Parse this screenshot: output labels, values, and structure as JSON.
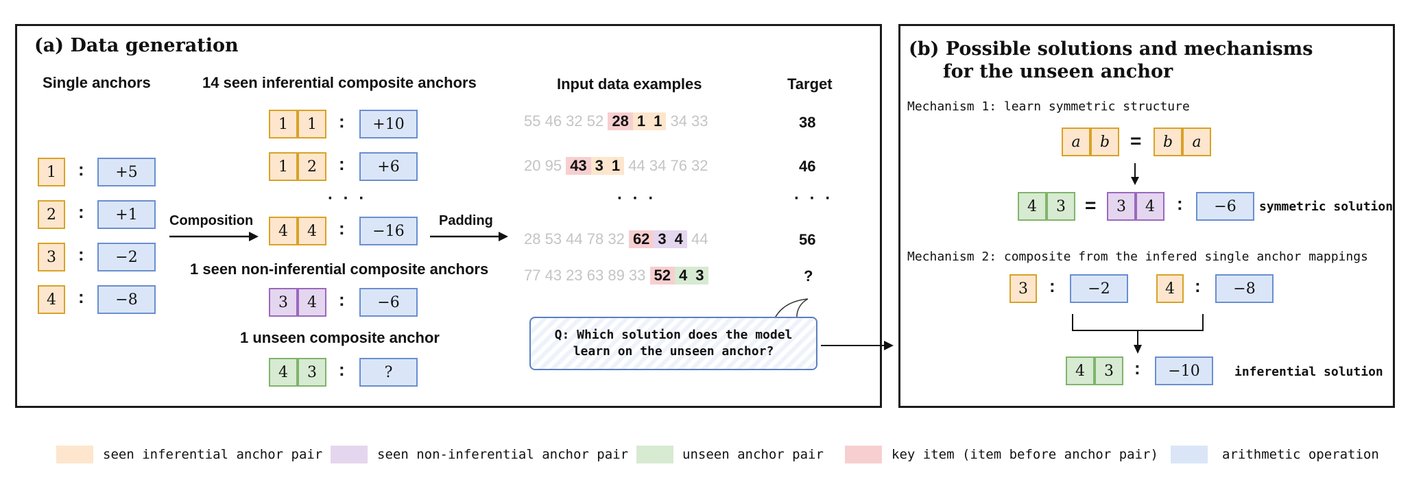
{
  "panel_a": {
    "title": "(a) Data generation",
    "headers": {
      "single": "Single anchors",
      "inferential": "14 seen inferential composite anchors",
      "input": "Input data examples",
      "target": "Target"
    },
    "single_anchors": [
      {
        "key": "1",
        "op": "+5"
      },
      {
        "key": "2",
        "op": "+1"
      },
      {
        "key": "3",
        "op": "−2"
      },
      {
        "key": "4",
        "op": "−8"
      }
    ],
    "inferential_anchors": [
      {
        "a": "1",
        "b": "1",
        "op": "+10"
      },
      {
        "a": "1",
        "b": "2",
        "op": "+6"
      },
      {
        "a": "4",
        "b": "4",
        "op": "−16"
      }
    ],
    "non_inferential_label": "1 seen non-inferential composite anchors",
    "non_inferential": {
      "a": "3",
      "b": "4",
      "op": "−6"
    },
    "unseen_label": "1 unseen composite anchor",
    "unseen": {
      "a": "4",
      "b": "3",
      "op": "?"
    },
    "composition_label": "Composition",
    "padding_label": "Padding",
    "ellipsis": "· · ·",
    "examples": [
      {
        "pre": "55 46 32 52",
        "key": "28",
        "a": "1",
        "b": "1",
        "post": "34 33",
        "target": "38"
      },
      {
        "pre": "20 95",
        "key": "43",
        "a": "3",
        "b": "1",
        "post": "44 34 76 32",
        "target": "46"
      },
      {
        "pre": "28 53 44 78 32",
        "key": "62",
        "a": "3",
        "b": "4",
        "post": "44",
        "target": "56"
      },
      {
        "pre": "77 43 23 63 89 33",
        "key": "52",
        "a": "4",
        "b": "3",
        "post": "",
        "target": "?"
      }
    ],
    "question": "Q: Which solution does the model learn on the unseen anchor?"
  },
  "panel_b": {
    "title_line1": "(b) Possible solutions and mechanisms",
    "title_line2": "for the unseen anchor",
    "mech1": "Mechanism 1: learn symmetric structure",
    "sym_a": "a",
    "sym_b": "b",
    "m1_pair": {
      "a": "4",
      "b": "3"
    },
    "m1_eq_pair": {
      "a": "3",
      "b": "4"
    },
    "m1_op": "−6",
    "symmetric_solution": "symmetric solution",
    "mech2": "Mechanism 2: composite from the infered single anchor mappings",
    "m2_left": {
      "key": "3",
      "op": "−2"
    },
    "m2_right": {
      "key": "4",
      "op": "−8"
    },
    "m2_pair": {
      "a": "4",
      "b": "3"
    },
    "m2_op": "−10",
    "inferential_solution": "inferential solution"
  },
  "legend": [
    {
      "label": "seen inferential anchor pair",
      "color": "#fde6cd"
    },
    {
      "label": "seen non-inferential anchor pair",
      "color": "#e4d6ee"
    },
    {
      "label": "unseen anchor pair",
      "color": "#d7ead2"
    },
    {
      "label": "key item (item before anchor pair)",
      "color": "#f7cfd0"
    },
    {
      "label": "arithmetic operation",
      "color": "#dae6f8"
    }
  ]
}
